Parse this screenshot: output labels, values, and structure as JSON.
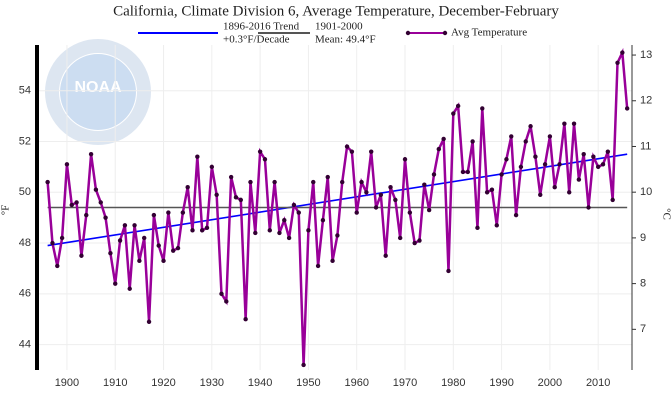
{
  "chart_data": {
    "type": "line",
    "title": "California, Climate Division 6, Average Temperature, December-February",
    "ylabel": "°F",
    "y2label": "°C",
    "logo": "NOAA",
    "xlim": [
      1893.8,
      2017
    ],
    "xticks": [
      1900,
      1910,
      1920,
      1930,
      1940,
      1950,
      1960,
      1970,
      1980,
      1990,
      2000,
      2010
    ],
    "ylim": [
      43,
      55.8
    ],
    "yticks": [
      44,
      46,
      48,
      50,
      52,
      54
    ],
    "y2lim": [
      6.11,
      13.22
    ],
    "y2ticks": [
      7,
      8,
      9,
      10,
      11,
      12,
      13
    ],
    "grid": true,
    "series": [
      {
        "name": "1896-2016 Trend",
        "legend_detail": "+0.3°F/Decade",
        "color": "#0000ff",
        "x": [
          1896,
          2016
        ],
        "values": [
          47.9,
          51.5
        ]
      },
      {
        "name": "1901-2000",
        "legend_detail": "Mean: 49.4°F",
        "color": "#555555",
        "x": [
          1896,
          2016
        ],
        "values": [
          49.4,
          49.4
        ]
      },
      {
        "name": "Avg Temperature",
        "color": "#990099",
        "marker_color": "#330033",
        "x": [
          1896,
          1897,
          1898,
          1899,
          1900,
          1901,
          1902,
          1903,
          1904,
          1905,
          1906,
          1907,
          1908,
          1909,
          1910,
          1911,
          1912,
          1913,
          1914,
          1915,
          1916,
          1917,
          1918,
          1919,
          1920,
          1921,
          1922,
          1923,
          1924,
          1925,
          1926,
          1927,
          1928,
          1929,
          1930,
          1931,
          1932,
          1933,
          1934,
          1935,
          1936,
          1937,
          1938,
          1939,
          1940,
          1941,
          1942,
          1943,
          1944,
          1945,
          1946,
          1947,
          1948,
          1949,
          1950,
          1951,
          1952,
          1953,
          1954,
          1955,
          1956,
          1957,
          1958,
          1959,
          1960,
          1961,
          1962,
          1963,
          1964,
          1965,
          1966,
          1967,
          1968,
          1969,
          1970,
          1971,
          1972,
          1973,
          1974,
          1975,
          1976,
          1977,
          1978,
          1979,
          1980,
          1981,
          1982,
          1983,
          1984,
          1985,
          1986,
          1987,
          1988,
          1989,
          1990,
          1991,
          1992,
          1993,
          1994,
          1995,
          1996,
          1997,
          1998,
          1999,
          2000,
          2001,
          2002,
          2003,
          2004,
          2005,
          2006,
          2007,
          2008,
          2009,
          2010,
          2011,
          2012,
          2013,
          2014,
          2015,
          2016
        ],
        "values": [
          50.4,
          48.0,
          47.1,
          48.2,
          51.1,
          49.5,
          49.6,
          47.5,
          49.1,
          51.5,
          50.1,
          49.6,
          49.0,
          47.6,
          46.4,
          48.1,
          48.7,
          46.2,
          48.7,
          47.3,
          48.2,
          44.9,
          49.1,
          47.9,
          47.3,
          49.2,
          47.7,
          47.8,
          49.2,
          50.2,
          48.5,
          51.4,
          48.5,
          48.6,
          51.0,
          49.9,
          46.0,
          45.7,
          50.6,
          49.8,
          49.7,
          45.0,
          50.4,
          48.4,
          51.6,
          51.3,
          48.5,
          50.4,
          48.4,
          48.9,
          48.2,
          49.5,
          49.2,
          43.2,
          48.5,
          50.4,
          47.1,
          48.9,
          50.6,
          47.3,
          48.3,
          50.4,
          51.8,
          51.6,
          49.2,
          50.4,
          50.0,
          51.6,
          49.4,
          49.9,
          47.5,
          50.2,
          49.7,
          48.2,
          51.3,
          49.2,
          48.0,
          48.1,
          50.3,
          49.3,
          50.7,
          51.7,
          52.1,
          46.9,
          53.1,
          53.4,
          50.8,
          50.8,
          52.0,
          48.6,
          53.3,
          50.0,
          50.1,
          48.7,
          50.7,
          51.3,
          52.2,
          49.1,
          51.0,
          52.0,
          52.6,
          51.4,
          49.9,
          51.1,
          52.2,
          50.2,
          51.1,
          52.7,
          50.0,
          52.7,
          50.5,
          51.5,
          49.4,
          51.4,
          51.0,
          51.1,
          51.6,
          49.7,
          55.1,
          55.5,
          53.3
        ]
      }
    ]
  }
}
